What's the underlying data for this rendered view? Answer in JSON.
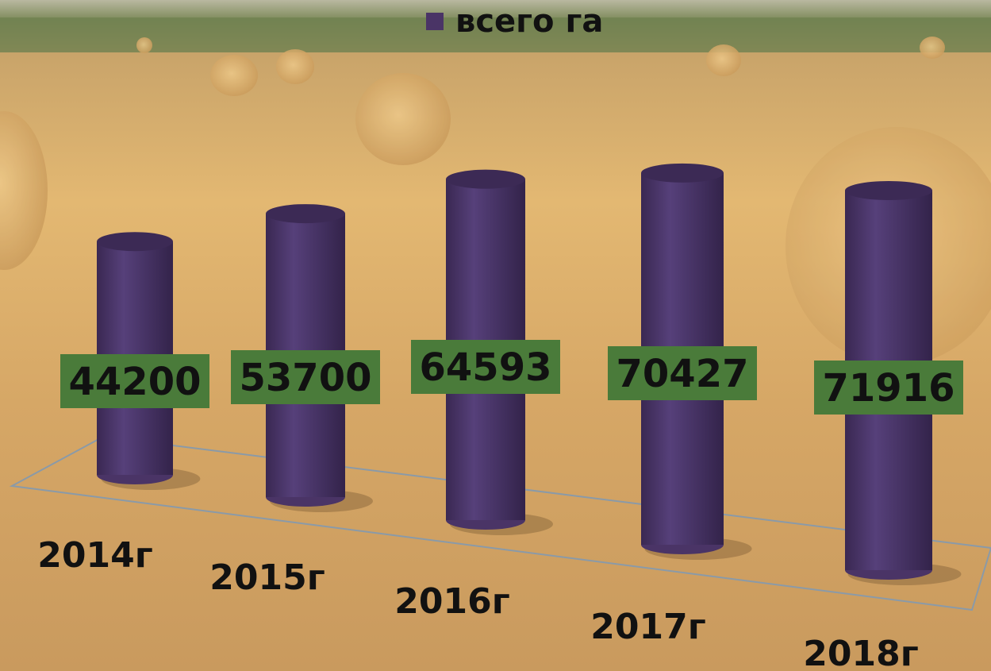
{
  "chart_data": {
    "type": "bar3d",
    "categories": [
      "2014г",
      "2015г",
      "2016г",
      "2017г",
      "2018г"
    ],
    "series": [
      {
        "name": "всего га",
        "color": "#4a3466",
        "values": [
          44200,
          53700,
          64593,
          70427,
          71916
        ]
      }
    ],
    "legend": "top"
  }
}
